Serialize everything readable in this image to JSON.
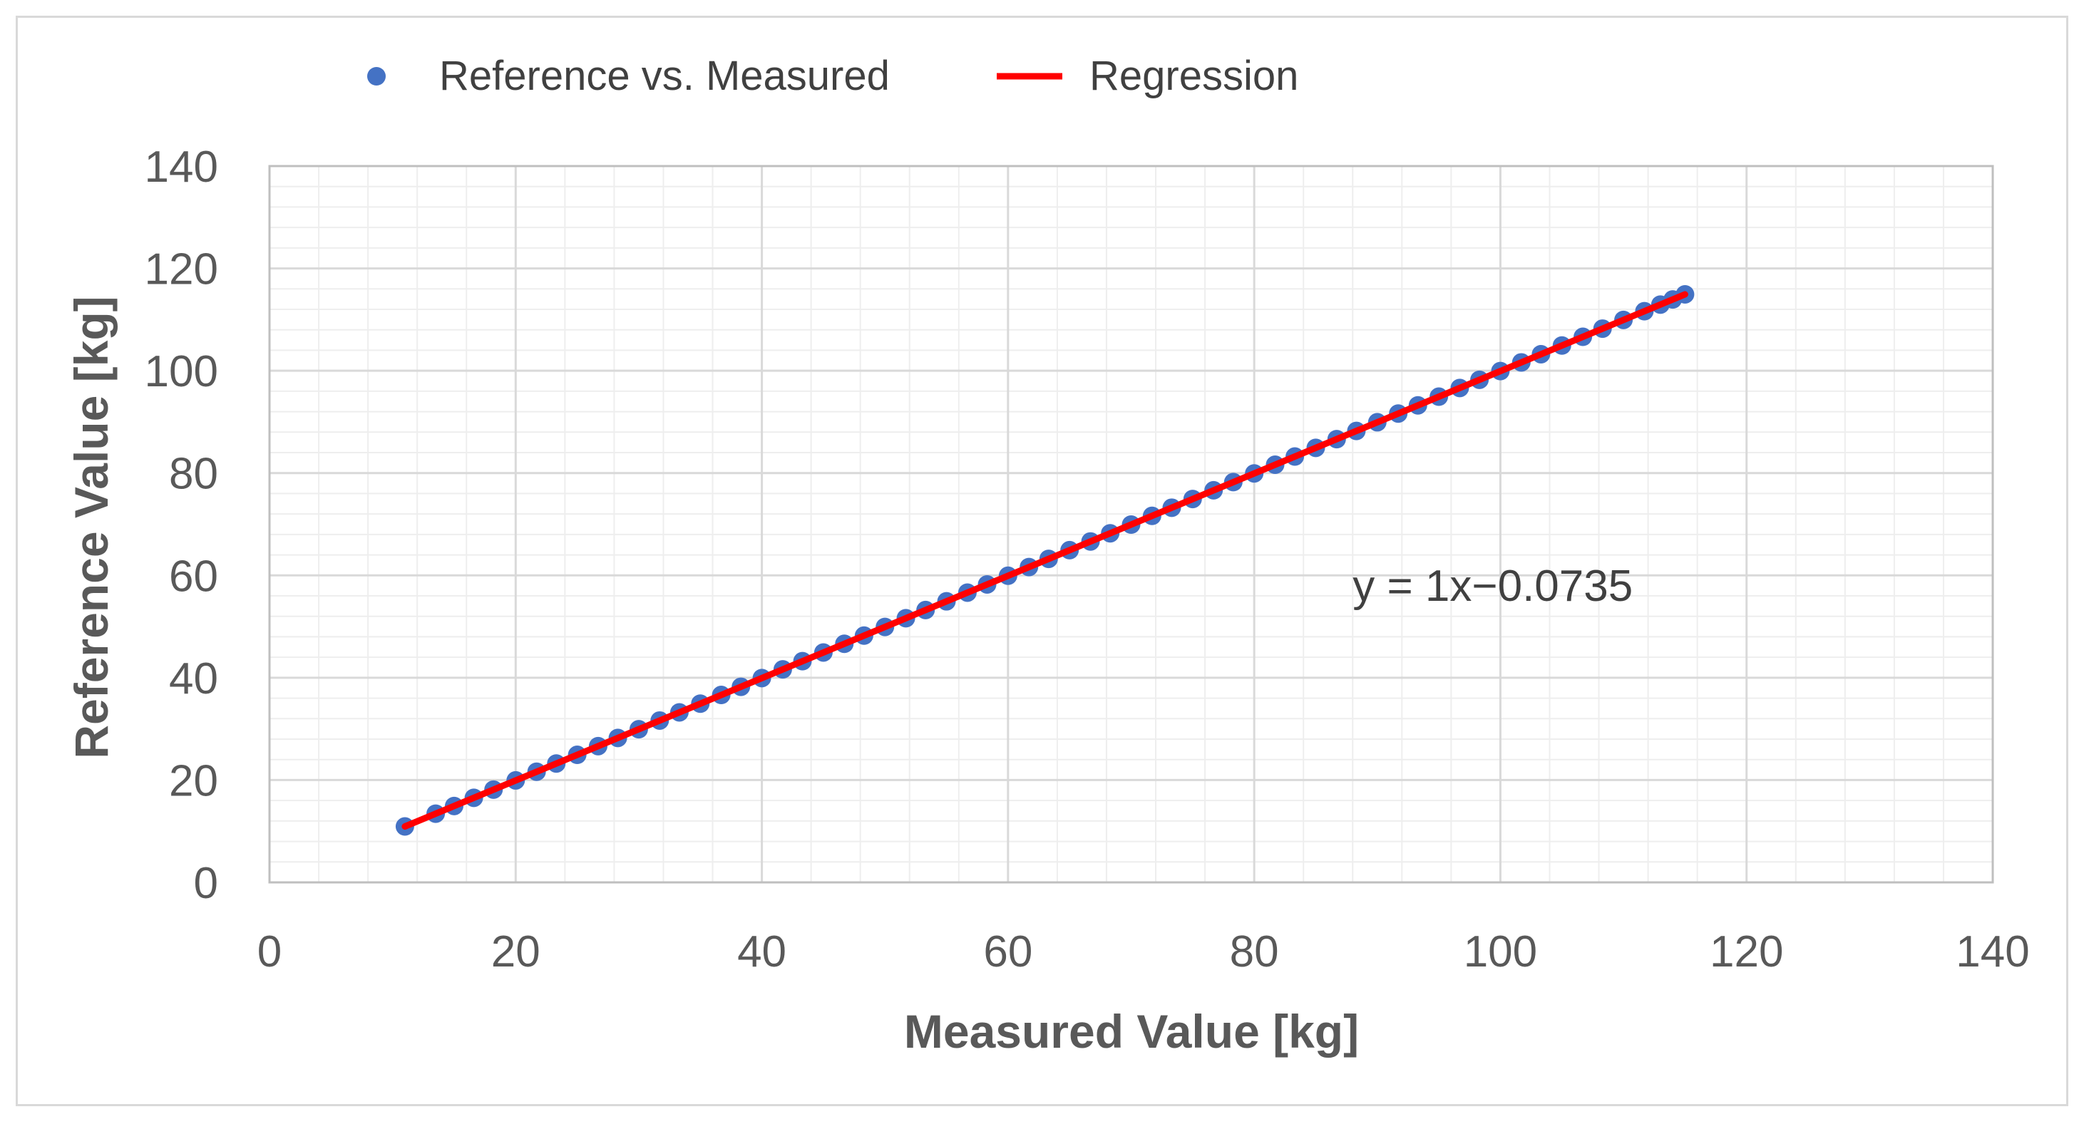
{
  "chart_data": {
    "type": "scatter",
    "title": "",
    "xlabel": "Measured Value [kg]",
    "ylabel": "Reference Value [kg]",
    "xlim": [
      0,
      140
    ],
    "ylim": [
      0,
      140
    ],
    "xticks": [
      "0",
      "20",
      "40",
      "60",
      "80",
      "100",
      "120",
      "140"
    ],
    "yticks": [
      "0",
      "20",
      "40",
      "60",
      "80",
      "100",
      "120",
      "140"
    ],
    "major_step": 20,
    "minor_step": 4,
    "grid": true,
    "legend_position": "top-left",
    "series": [
      {
        "name": "Reference vs. Measured",
        "kind": "scatter",
        "color": "#4472c4",
        "x": [
          11.0,
          13.5,
          15.0,
          16.6,
          18.2,
          20.0,
          21.7,
          23.3,
          25.0,
          26.7,
          28.3,
          30.0,
          31.7,
          33.3,
          35.0,
          36.7,
          38.3,
          40.0,
          41.7,
          43.3,
          45.0,
          46.7,
          48.3,
          50.0,
          51.7,
          53.3,
          55.0,
          56.7,
          58.3,
          60.0,
          61.7,
          63.3,
          65.0,
          66.7,
          68.3,
          70.0,
          71.7,
          73.3,
          75.0,
          76.7,
          78.3,
          80.0,
          81.7,
          83.3,
          85.0,
          86.7,
          88.3,
          90.0,
          91.7,
          93.3,
          95.0,
          96.7,
          98.3,
          100.0,
          101.7,
          103.3,
          105.0,
          106.7,
          108.3,
          110.0,
          111.7,
          113.0,
          114.0,
          115.0
        ],
        "y": [
          10.93,
          13.43,
          14.93,
          16.53,
          18.13,
          19.93,
          21.63,
          23.23,
          24.93,
          26.63,
          28.23,
          29.93,
          31.63,
          33.23,
          34.93,
          36.63,
          38.23,
          39.93,
          41.63,
          43.23,
          44.93,
          46.63,
          48.23,
          49.93,
          51.63,
          53.23,
          54.93,
          56.63,
          58.23,
          59.93,
          61.63,
          63.23,
          64.93,
          66.63,
          68.23,
          69.93,
          71.63,
          73.23,
          74.93,
          76.63,
          78.23,
          79.93,
          81.63,
          83.23,
          84.93,
          86.63,
          88.23,
          89.93,
          91.63,
          93.23,
          94.93,
          96.63,
          98.23,
          99.93,
          101.63,
          103.23,
          104.93,
          106.63,
          108.23,
          109.93,
          111.63,
          112.93,
          113.93,
          114.93
        ]
      },
      {
        "name": "Regression",
        "kind": "line",
        "color": "#ff0000",
        "x": [
          11.0,
          115.0
        ],
        "y": [
          10.9265,
          114.9265
        ]
      }
    ],
    "annotations": [
      {
        "text": "y = 1x−0.0735",
        "x": 88,
        "y": 55
      }
    ]
  }
}
